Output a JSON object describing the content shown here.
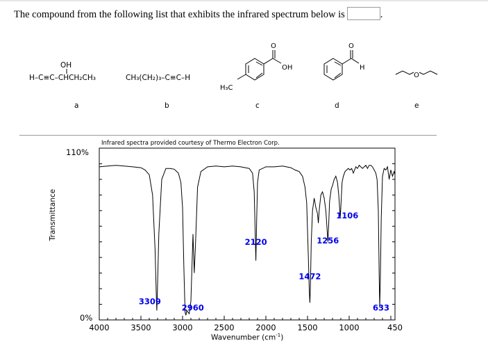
{
  "question": {
    "text": "The compound from the following list that exhibits the infrared spectrum below is",
    "period": "."
  },
  "compounds": [
    {
      "label": "a",
      "formula_top": "OH",
      "formula": "H–C≡C–CHCH₂CH₃"
    },
    {
      "label": "b",
      "formula": "CH₃(CH₂)₃–C≡C–H"
    },
    {
      "label": "c",
      "substituent": "H₃C",
      "group_o": "O",
      "group_oh": "OH"
    },
    {
      "label": "d",
      "group_o": "O",
      "group_h": "H"
    },
    {
      "label": "e",
      "atom": "O"
    }
  ],
  "chart_data": {
    "type": "line",
    "courtesy": "Infrared spectra provided courtesy of Thermo Electron Corp.",
    "xlabel": "Wavenumber (cm",
    "xlabel_sup": "-1",
    "xlabel_end": ")",
    "ylabel": "Transmittance",
    "y_top_label": "110%",
    "y_bottom_label": "0%",
    "xlim": [
      4000,
      450
    ],
    "ylim": [
      0,
      110
    ],
    "xticks": [
      4000,
      3500,
      3000,
      2500,
      2000,
      1500,
      1000,
      450
    ],
    "peak_labels": [
      {
        "text": "3309",
        "x": 3309,
        "y": 10
      },
      {
        "text": "2960",
        "x": 2960,
        "y": 7
      },
      {
        "text": "2120",
        "x": 2120,
        "y": 48
      },
      {
        "text": "1472",
        "x": 1472,
        "y": 26
      },
      {
        "text": "1256",
        "x": 1256,
        "y": 49
      },
      {
        "text": "1106",
        "x": 1106,
        "y": 65
      },
      {
        "text": "633",
        "x": 633,
        "y": 6
      }
    ],
    "series": [
      {
        "x": [
          4000,
          3900,
          3800,
          3700,
          3600,
          3500,
          3450,
          3400,
          3360,
          3330,
          3315,
          3309,
          3303,
          3285,
          3250,
          3200,
          3150,
          3100,
          3050,
          3020,
          3000,
          2985,
          2970,
          2960,
          2950,
          2935,
          2920,
          2900,
          2875,
          2860,
          2845,
          2820,
          2780,
          2700,
          2600,
          2500,
          2400,
          2300,
          2200,
          2160,
          2140,
          2130,
          2120,
          2110,
          2100,
          2080,
          2000,
          1900,
          1800,
          1700,
          1650,
          1600,
          1560,
          1530,
          1510,
          1490,
          1478,
          1472,
          1466,
          1455,
          1440,
          1420,
          1400,
          1380,
          1370,
          1360,
          1340,
          1320,
          1300,
          1280,
          1265,
          1256,
          1247,
          1235,
          1215,
          1200,
          1180,
          1160,
          1140,
          1125,
          1115,
          1106,
          1098,
          1085,
          1070,
          1050,
          1030,
          1010,
          990,
          970,
          950,
          920,
          900,
          880,
          860,
          840,
          820,
          800,
          780,
          760,
          740,
          720,
          700,
          680,
          665,
          650,
          640,
          633,
          626,
          615,
          600,
          580,
          560,
          540,
          520,
          500,
          480,
          460,
          450
        ],
        "y": [
          98,
          98.5,
          99,
          98.5,
          98,
          97.5,
          96,
          93,
          80,
          45,
          15,
          6,
          16,
          55,
          90,
          97,
          97,
          96.5,
          94,
          88,
          72,
          35,
          5,
          3,
          6,
          5,
          4,
          12,
          55,
          30,
          48,
          85,
          95,
          98,
          98.5,
          98,
          98.5,
          98,
          97,
          94,
          82,
          60,
          38,
          65,
          88,
          96,
          98,
          98,
          98.5,
          97.5,
          96,
          95,
          92,
          85,
          75,
          40,
          18,
          11,
          20,
          50,
          70,
          78,
          72,
          68,
          62,
          70,
          80,
          82,
          78,
          70,
          58,
          50,
          60,
          76,
          84,
          86,
          90,
          92,
          88,
          80,
          72,
          66,
          74,
          88,
          92,
          95,
          96,
          97,
          96,
          97,
          94,
          98,
          97,
          99,
          98,
          97,
          98,
          99,
          97,
          99,
          99,
          98,
          96,
          94,
          90,
          70,
          30,
          8,
          25,
          65,
          92,
          97,
          96,
          98,
          90,
          96,
          92,
          95,
          93
        ]
      }
    ]
  }
}
